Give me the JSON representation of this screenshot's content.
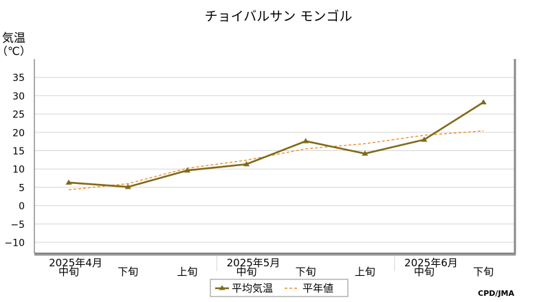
{
  "chart_data": {
    "type": "line",
    "title": "チョイバルサン モンゴル",
    "ylabel_line1": "気温",
    "ylabel_line2": "（℃）",
    "ylim": [
      -13,
      40
    ],
    "yticks": [
      35,
      30,
      25,
      20,
      15,
      10,
      5,
      0,
      -5,
      -10
    ],
    "ytick_labels": [
      "35",
      "30",
      "25",
      "20",
      "15",
      "10",
      "5",
      "0",
      "−5",
      "−10"
    ],
    "grid": true,
    "categories": [
      "中旬",
      "下旬",
      "上旬",
      "中旬",
      "下旬",
      "上旬",
      "中旬",
      "下旬"
    ],
    "month_labels": [
      {
        "label": "2025年4月",
        "at_index": 0
      },
      {
        "label": "2025年5月",
        "at_index": 3
      },
      {
        "label": "2025年6月",
        "at_index": 6
      }
    ],
    "series": [
      {
        "name": "平均気温",
        "color": "#7f6a17",
        "style": "solid-triangle",
        "values": [
          6.3,
          5.1,
          9.6,
          11.3,
          17.6,
          14.2,
          18.0,
          28.2
        ]
      },
      {
        "name": "平年値",
        "color": "#f08a24",
        "style": "dashed",
        "values": [
          4.3,
          6.0,
          10.2,
          12.4,
          15.5,
          16.9,
          19.2,
          20.4
        ]
      }
    ],
    "legend_position": "bottom-center",
    "source": "CPD/JMA"
  }
}
